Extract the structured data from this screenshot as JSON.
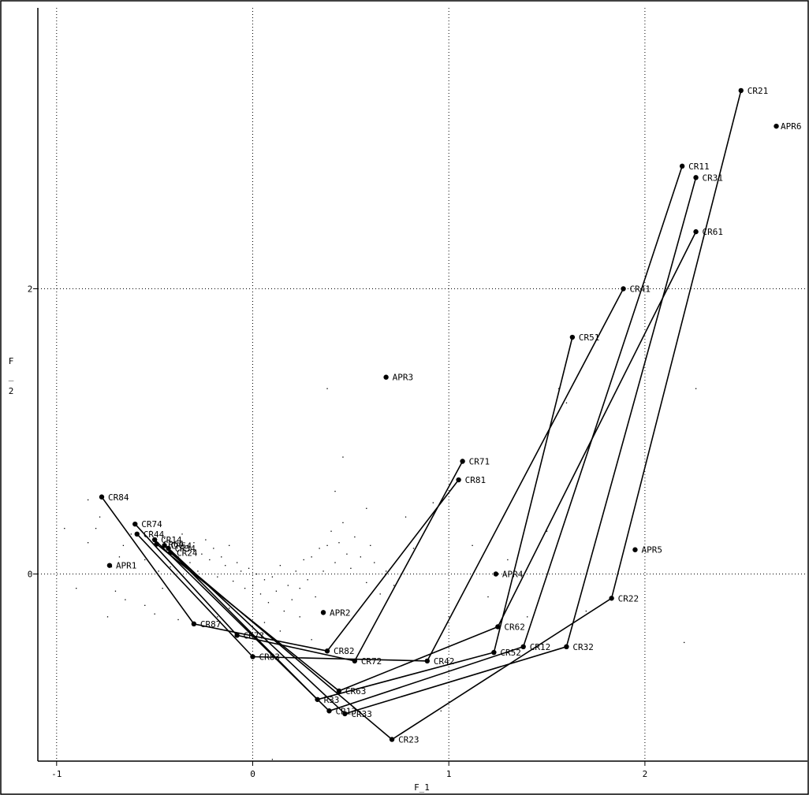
{
  "chart_data": {
    "type": "scatter",
    "xlabel": "F_1",
    "ylabel": "F_2",
    "xlim": [
      -1.1,
      2.85
    ],
    "ylim": [
      -1.35,
      3.85
    ],
    "xticks": [
      "-1",
      "0",
      "1",
      "2"
    ],
    "yticks": [
      "0",
      "2"
    ],
    "grid": true,
    "labeled_points": [
      {
        "label": "CR21",
        "x": 2.49,
        "y": 3.39
      },
      {
        "label": "APR6",
        "x": 2.67,
        "y": 3.14
      },
      {
        "label": "CR11",
        "x": 2.19,
        "y": 2.86
      },
      {
        "label": "CR31",
        "x": 2.26,
        "y": 2.78
      },
      {
        "label": "CR61",
        "x": 2.26,
        "y": 2.4
      },
      {
        "label": "CR41",
        "x": 1.89,
        "y": 2.0
      },
      {
        "label": "CR51",
        "x": 1.63,
        "y": 1.66
      },
      {
        "label": "APR3",
        "x": 0.68,
        "y": 1.38
      },
      {
        "label": "CR71",
        "x": 1.07,
        "y": 0.79
      },
      {
        "label": "CR81",
        "x": 1.05,
        "y": 0.66
      },
      {
        "label": "CR84",
        "x": -0.77,
        "y": 0.54
      },
      {
        "label": "CR74",
        "x": -0.6,
        "y": 0.35
      },
      {
        "label": "CR44",
        "x": -0.59,
        "y": 0.28
      },
      {
        "label": "CR14",
        "x": -0.5,
        "y": 0.24
      },
      {
        "label": "CR64",
        "x": -0.49,
        "y": 0.21
      },
      {
        "label": "CR54",
        "x": -0.45,
        "y": 0.2
      },
      {
        "label": "CR34",
        "x": -0.43,
        "y": 0.18
      },
      {
        "label": "CR24",
        "x": -0.42,
        "y": 0.15
      },
      {
        "label": "APR5",
        "x": 1.95,
        "y": 0.17
      },
      {
        "label": "APR1",
        "x": -0.73,
        "y": 0.06
      },
      {
        "label": "APR4",
        "x": 1.24,
        "y": 0.0
      },
      {
        "label": "CR22",
        "x": 1.83,
        "y": -0.17
      },
      {
        "label": "APR2",
        "x": 0.36,
        "y": -0.27
      },
      {
        "label": "CR62",
        "x": 1.25,
        "y": -0.37
      },
      {
        "label": "CR87",
        "x": -0.3,
        "y": -0.35
      },
      {
        "label": "CR7?",
        "x": -0.08,
        "y": -0.43
      },
      {
        "label": "CR12",
        "x": 1.38,
        "y": -0.51
      },
      {
        "label": "CR32",
        "x": 1.6,
        "y": -0.51
      },
      {
        "label": "CR52",
        "x": 1.23,
        "y": -0.55
      },
      {
        "label": "CR82",
        "x": 0.38,
        "y": -0.54
      },
      {
        "label": "CR83",
        "x": 0.0,
        "y": -0.58
      },
      {
        "label": "CR72",
        "x": 0.52,
        "y": -0.61
      },
      {
        "label": "CR42",
        "x": 0.89,
        "y": -0.61
      },
      {
        "label": "CR63",
        "x": 0.44,
        "y": -0.82
      },
      {
        "label": "R33",
        "x": 0.33,
        "y": -0.88
      },
      {
        "label": "CR13",
        "x": 0.39,
        "y": -0.96
      },
      {
        "label": "CR33",
        "x": 0.47,
        "y": -0.98
      },
      {
        "label": "CR23",
        "x": 0.71,
        "y": -1.16
      }
    ],
    "paths": [
      [
        "CR21",
        "CR22",
        "CR23",
        "CR24"
      ],
      [
        "CR11",
        "CR12",
        "CR13",
        "CR14"
      ],
      [
        "CR31",
        "CR32",
        "CR33",
        "CR34"
      ],
      [
        "CR61",
        "CR62",
        "CR63",
        "CR64"
      ],
      [
        "CR41",
        "CR42",
        "CR83",
        "CR44"
      ],
      [
        "CR51",
        "CR52",
        "R33",
        "CR54"
      ],
      [
        "CR71",
        "CR72",
        "CR7?",
        "CR74"
      ],
      [
        "CR81",
        "CR82",
        "CR87",
        "CR84"
      ]
    ],
    "scatter_dots": [
      [
        -0.72,
        0.05
      ],
      [
        -0.68,
        0.12
      ],
      [
        -0.66,
        0.2
      ],
      [
        -0.62,
        0.28
      ],
      [
        -0.58,
        0.18
      ],
      [
        -0.55,
        0.1
      ],
      [
        -0.52,
        0.3
      ],
      [
        -0.48,
        0.02
      ],
      [
        -0.45,
        0.25
      ],
      [
        -0.42,
        0.05
      ],
      [
        -0.4,
        0.22
      ],
      [
        -0.38,
        0.12
      ],
      [
        -0.36,
        0.28
      ],
      [
        -0.34,
        0.18
      ],
      [
        -0.32,
        0.08
      ],
      [
        -0.3,
        0.22
      ],
      [
        -0.28,
        0.02
      ],
      [
        -0.26,
        0.14
      ],
      [
        -0.24,
        0.24
      ],
      [
        -0.22,
        0.1
      ],
      [
        -0.2,
        0.18
      ],
      [
        -0.18,
        -0.02
      ],
      [
        -0.16,
        0.12
      ],
      [
        -0.14,
        0.06
      ],
      [
        -0.12,
        0.2
      ],
      [
        -0.1,
        -0.05
      ],
      [
        -0.08,
        0.08
      ],
      [
        -0.06,
        0.02
      ],
      [
        -0.04,
        -0.1
      ],
      [
        -0.02,
        0.04
      ],
      [
        0.0,
        -0.08
      ],
      [
        0.02,
        0.0
      ],
      [
        0.04,
        -0.14
      ],
      [
        0.06,
        -0.04
      ],
      [
        0.08,
        -0.2
      ],
      [
        0.1,
        -0.02
      ],
      [
        0.12,
        -0.12
      ],
      [
        0.14,
        0.06
      ],
      [
        0.16,
        -0.26
      ],
      [
        0.18,
        -0.08
      ],
      [
        0.2,
        -0.18
      ],
      [
        0.22,
        0.02
      ],
      [
        0.24,
        -0.1
      ],
      [
        0.26,
        0.1
      ],
      [
        0.28,
        -0.04
      ],
      [
        0.3,
        0.12
      ],
      [
        0.32,
        -0.16
      ],
      [
        0.34,
        0.18
      ],
      [
        0.36,
        0.02
      ],
      [
        0.38,
        0.2
      ],
      [
        0.4,
        0.3
      ],
      [
        0.42,
        0.08
      ],
      [
        0.44,
        0.22
      ],
      [
        0.46,
        0.36
      ],
      [
        0.48,
        0.14
      ],
      [
        0.5,
        0.04
      ],
      [
        0.52,
        0.26
      ],
      [
        0.55,
        0.12
      ],
      [
        0.58,
        -0.06
      ],
      [
        0.6,
        0.2
      ],
      [
        0.62,
        0.08
      ],
      [
        0.65,
        -0.14
      ],
      [
        0.68,
        0.02
      ],
      [
        0.72,
        -0.08
      ],
      [
        -0.8,
        0.32
      ],
      [
        -0.84,
        0.22
      ],
      [
        -0.7,
        -0.12
      ],
      [
        -0.65,
        -0.18
      ],
      [
        -0.55,
        -0.22
      ],
      [
        -0.5,
        -0.28
      ],
      [
        -0.46,
        -0.1
      ],
      [
        -0.38,
        -0.32
      ],
      [
        -0.26,
        -0.2
      ],
      [
        -0.18,
        -0.3
      ],
      [
        -0.12,
        -0.24
      ],
      [
        0.06,
        -0.34
      ],
      [
        0.14,
        -0.4
      ],
      [
        0.24,
        -0.3
      ],
      [
        0.3,
        -0.46
      ],
      [
        0.1,
        -1.3
      ],
      [
        0.42,
        0.58
      ],
      [
        0.46,
        0.82
      ],
      [
        0.38,
        1.3
      ],
      [
        0.58,
        0.46
      ],
      [
        0.78,
        0.4
      ],
      [
        0.82,
        0.18
      ],
      [
        0.92,
        0.5
      ],
      [
        1.12,
        0.2
      ],
      [
        1.3,
        0.1
      ],
      [
        1.5,
        0.3
      ],
      [
        1.2,
        -0.16
      ],
      [
        1.0,
        -0.3
      ],
      [
        1.4,
        -0.3
      ],
      [
        1.7,
        -0.26
      ],
      [
        2.2,
        -0.48
      ],
      [
        2.26,
        1.3
      ],
      [
        1.56,
        1.3
      ],
      [
        1.6,
        1.2
      ],
      [
        0.96,
        -0.96
      ],
      [
        -0.84,
        0.52
      ],
      [
        -0.78,
        0.4
      ],
      [
        -0.96,
        0.32
      ],
      [
        -0.9,
        -0.1
      ],
      [
        -0.74,
        -0.3
      ]
    ]
  }
}
